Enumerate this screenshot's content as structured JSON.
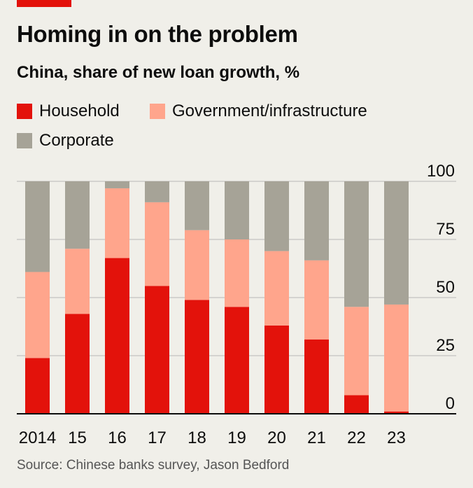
{
  "title": "Homing in on the problem",
  "subtitle": "China, share of new loan growth, %",
  "source": "Source: Chinese banks survey, Jason Bedford",
  "colors": {
    "accent": "#e3120b",
    "household": "#e3120b",
    "government": "#ffa58c",
    "corporate": "#a6a397",
    "axis": "#0d0d0d",
    "grid": "#b7b7b7"
  },
  "legend": [
    {
      "label": "Household",
      "color": "#e3120b"
    },
    {
      "label": "Government/infrastructure",
      "color": "#ffa58c"
    },
    {
      "label": "Corporate",
      "color": "#a6a397"
    }
  ],
  "chart_data": {
    "type": "bar",
    "stacked": true,
    "categories": [
      "2014",
      "15",
      "16",
      "17",
      "18",
      "19",
      "20",
      "21",
      "22",
      "23"
    ],
    "series": [
      {
        "name": "Household",
        "color": "#e3120b",
        "values": [
          24,
          43,
          67,
          55,
          49,
          46,
          38,
          32,
          8,
          1
        ]
      },
      {
        "name": "Government/infrastructure",
        "color": "#ffa58c",
        "values": [
          37,
          28,
          30,
          36,
          30,
          29,
          32,
          34,
          38,
          46
        ]
      },
      {
        "name": "Corporate",
        "color": "#a6a397",
        "values": [
          39,
          29,
          3,
          9,
          21,
          25,
          30,
          34,
          54,
          53
        ]
      }
    ],
    "ylim": [
      0,
      100
    ],
    "yticks": [
      0,
      25,
      50,
      75,
      100
    ],
    "ytick_labels": [
      "0",
      "25",
      "50",
      "75",
      "100"
    ],
    "y_axis_side": "right",
    "grid": true,
    "legend_position": "top-left"
  }
}
